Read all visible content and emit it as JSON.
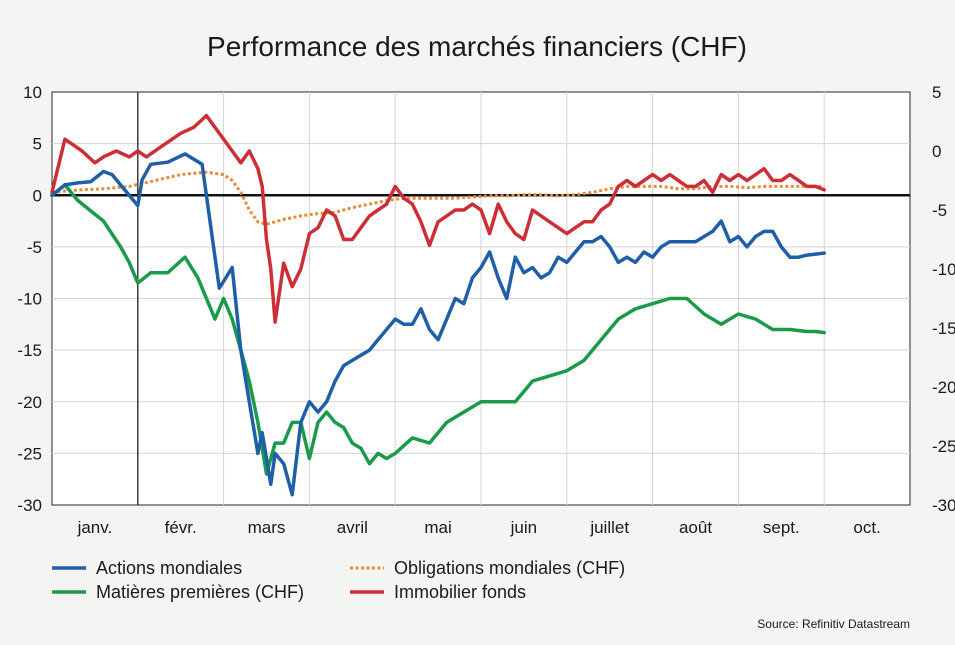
{
  "chart_data": {
    "type": "line",
    "title": "Performance des marchés financiers (CHF)",
    "source": "Source: Refinitiv Datastream",
    "months": [
      "janv.",
      "févr.",
      "mars",
      "avril",
      "mai",
      "juin",
      "juillet",
      "août",
      "sept.",
      "oct."
    ],
    "x_range": [
      0,
      10
    ],
    "left_axis": {
      "min": -30,
      "max": 10,
      "ticks": [
        10,
        5,
        0,
        -5,
        -10,
        -15,
        -20,
        -25,
        -30
      ]
    },
    "right_axis": {
      "min": -30,
      "max": 5,
      "ticks": [
        5,
        0,
        -5,
        -10,
        -15,
        -20,
        -25,
        -30
      ]
    },
    "colors": {
      "actions": "#1f5fa8",
      "matieres": "#1c9a4c",
      "obligations": "#e98a3c",
      "immobilier": "#cc2f36"
    },
    "series": [
      {
        "key": "actions",
        "name": "Actions mondiales",
        "axis": "left",
        "style": "solid",
        "x": [
          0.0,
          0.15,
          0.3,
          0.45,
          0.6,
          0.7,
          0.85,
          1.0,
          1.05,
          1.15,
          1.35,
          1.55,
          1.75,
          1.95,
          2.1,
          2.2,
          2.3,
          2.4,
          2.45,
          2.55,
          2.6,
          2.7,
          2.8,
          2.9,
          3.0,
          3.1,
          3.2,
          3.3,
          3.4,
          3.5,
          3.6,
          3.7,
          3.8,
          3.9,
          4.0,
          4.1,
          4.2,
          4.3,
          4.4,
          4.5,
          4.6,
          4.7,
          4.8,
          4.9,
          5.0,
          5.1,
          5.2,
          5.3,
          5.4,
          5.5,
          5.6,
          5.7,
          5.8,
          5.9,
          6.0,
          6.1,
          6.2,
          6.3,
          6.4,
          6.5,
          6.6,
          6.7,
          6.8,
          6.9,
          7.0,
          7.1,
          7.2,
          7.3,
          7.4,
          7.5,
          7.6,
          7.7,
          7.8,
          7.9,
          8.0,
          8.1,
          8.2,
          8.3,
          8.4,
          8.5,
          8.6,
          8.7,
          8.8,
          8.9,
          9.0
        ],
        "values": [
          0.0,
          1.0,
          1.2,
          1.3,
          2.3,
          2.0,
          0.5,
          -1.0,
          1.5,
          3.0,
          3.2,
          4.0,
          3.0,
          -9.0,
          -7.0,
          -15.0,
          -20.0,
          -25.0,
          -23.0,
          -28.0,
          -25.0,
          -26.0,
          -29.0,
          -22.0,
          -20.0,
          -21.0,
          -20.0,
          -18.0,
          -16.5,
          -16.0,
          -15.5,
          -15.0,
          -14.0,
          -13.0,
          -12.0,
          -12.5,
          -12.5,
          -11.0,
          -13.0,
          -14.0,
          -12.0,
          -10.0,
          -10.5,
          -8.0,
          -7.0,
          -5.5,
          -8.0,
          -10.0,
          -6.0,
          -7.5,
          -7.0,
          -8.0,
          -7.5,
          -6.0,
          -6.5,
          -5.5,
          -4.5,
          -4.5,
          -4.0,
          -5.0,
          -6.5,
          -6.0,
          -6.5,
          -5.5,
          -6.0,
          -5.0,
          -4.5,
          -4.5,
          -4.5,
          -4.5,
          -4.0,
          -3.5,
          -2.5,
          -4.5,
          -4.0,
          -5.0,
          -4.0,
          -3.5,
          -3.5,
          -5.0,
          -6.0,
          -6.0,
          -5.8,
          -5.7,
          -5.6
        ]
      },
      {
        "key": "matieres",
        "name": "Matières premières (CHF)",
        "axis": "left",
        "style": "solid",
        "x": [
          0.0,
          0.15,
          0.3,
          0.45,
          0.6,
          0.8,
          0.9,
          1.0,
          1.15,
          1.35,
          1.55,
          1.7,
          1.9,
          2.0,
          2.1,
          2.2,
          2.3,
          2.4,
          2.5,
          2.6,
          2.7,
          2.8,
          2.9,
          3.0,
          3.1,
          3.2,
          3.3,
          3.4,
          3.5,
          3.6,
          3.7,
          3.8,
          3.9,
          4.0,
          4.2,
          4.4,
          4.6,
          4.8,
          5.0,
          5.2,
          5.4,
          5.6,
          5.8,
          6.0,
          6.2,
          6.4,
          6.6,
          6.8,
          7.0,
          7.2,
          7.4,
          7.6,
          7.8,
          8.0,
          8.2,
          8.4,
          8.6,
          8.8,
          8.9,
          9.0
        ],
        "values": [
          0.0,
          1.0,
          -0.5,
          -1.5,
          -2.5,
          -5.0,
          -6.5,
          -8.5,
          -7.5,
          -7.5,
          -6.0,
          -8.0,
          -12.0,
          -10.0,
          -12.0,
          -15.0,
          -18.0,
          -22.0,
          -27.0,
          -24.0,
          -24.0,
          -22.0,
          -22.0,
          -25.5,
          -22.0,
          -21.0,
          -22.0,
          -22.5,
          -24.0,
          -24.5,
          -26.0,
          -25.0,
          -25.5,
          -25.0,
          -23.5,
          -24.0,
          -22.0,
          -21.0,
          -20.0,
          -20.0,
          -20.0,
          -18.0,
          -17.5,
          -17.0,
          -16.0,
          -14.0,
          -12.0,
          -11.0,
          -10.5,
          -10.0,
          -10.0,
          -11.5,
          -12.5,
          -11.5,
          -12.0,
          -13.0,
          -13.0,
          -13.2,
          -13.2,
          -13.3
        ]
      },
      {
        "key": "obligations",
        "name": "Obligations mondiales (CHF)",
        "axis": "right",
        "style": "dotted",
        "x": [
          0.0,
          0.3,
          0.6,
          0.9,
          1.2,
          1.5,
          1.8,
          2.0,
          2.1,
          2.2,
          2.3,
          2.4,
          2.5,
          2.7,
          2.9,
          3.1,
          3.3,
          3.5,
          3.7,
          3.9,
          4.1,
          4.3,
          4.5,
          4.7,
          4.9,
          5.1,
          5.3,
          5.5,
          5.7,
          5.9,
          6.1,
          6.3,
          6.5,
          6.7,
          6.9,
          7.1,
          7.3,
          7.5,
          7.7,
          7.9,
          8.1,
          8.3,
          8.5,
          8.7,
          8.9,
          9.0
        ],
        "values": [
          -3.5,
          -3.3,
          -3.2,
          -3.0,
          -2.5,
          -2.0,
          -1.8,
          -2.0,
          -2.5,
          -3.5,
          -5.0,
          -6.0,
          -6.2,
          -5.8,
          -5.5,
          -5.3,
          -5.2,
          -4.8,
          -4.5,
          -4.2,
          -4.0,
          -4.0,
          -4.0,
          -4.0,
          -3.9,
          -3.8,
          -3.8,
          -3.7,
          -3.7,
          -3.8,
          -3.7,
          -3.5,
          -3.2,
          -3.0,
          -3.0,
          -3.0,
          -3.2,
          -3.2,
          -3.0,
          -3.0,
          -3.1,
          -3.0,
          -3.0,
          -3.0,
          -3.0,
          -3.0
        ]
      },
      {
        "key": "immobilier",
        "name": "Immobilier fonds",
        "axis": "right",
        "style": "solid",
        "x": [
          0.0,
          0.15,
          0.25,
          0.35,
          0.5,
          0.6,
          0.75,
          0.9,
          1.0,
          1.1,
          1.3,
          1.5,
          1.65,
          1.8,
          1.9,
          2.0,
          2.1,
          2.2,
          2.3,
          2.4,
          2.45,
          2.5,
          2.55,
          2.6,
          2.7,
          2.8,
          2.9,
          3.0,
          3.1,
          3.2,
          3.3,
          3.4,
          3.5,
          3.6,
          3.7,
          3.8,
          3.9,
          4.0,
          4.1,
          4.2,
          4.3,
          4.4,
          4.5,
          4.6,
          4.7,
          4.8,
          4.9,
          5.0,
          5.1,
          5.2,
          5.3,
          5.4,
          5.5,
          5.6,
          5.7,
          5.8,
          5.9,
          6.0,
          6.1,
          6.2,
          6.3,
          6.4,
          6.5,
          6.6,
          6.7,
          6.8,
          6.9,
          7.0,
          7.1,
          7.2,
          7.3,
          7.4,
          7.5,
          7.6,
          7.7,
          7.8,
          7.9,
          8.0,
          8.1,
          8.2,
          8.3,
          8.4,
          8.5,
          8.6,
          8.7,
          8.8,
          8.9,
          9.0
        ],
        "values": [
          -3.5,
          1.0,
          0.5,
          0.0,
          -1.0,
          -0.5,
          0.0,
          -0.5,
          0.0,
          -0.5,
          0.5,
          1.5,
          2.0,
          3.0,
          2.0,
          1.0,
          0.0,
          -1.0,
          0.0,
          -1.5,
          -3.0,
          -7.5,
          -10.0,
          -14.5,
          -9.5,
          -11.5,
          -10.0,
          -7.0,
          -6.5,
          -5.0,
          -5.5,
          -7.5,
          -7.5,
          -6.5,
          -5.5,
          -5.0,
          -4.5,
          -3.0,
          -4.0,
          -4.5,
          -6.0,
          -8.0,
          -6.0,
          -5.5,
          -5.0,
          -5.0,
          -4.5,
          -5.0,
          -7.0,
          -4.5,
          -6.0,
          -7.0,
          -7.5,
          -5.0,
          -5.5,
          -6.0,
          -6.5,
          -7.0,
          -6.5,
          -6.0,
          -6.0,
          -5.0,
          -4.5,
          -3.0,
          -2.5,
          -3.0,
          -2.5,
          -2.0,
          -2.5,
          -2.0,
          -2.5,
          -3.0,
          -3.0,
          -2.5,
          -3.5,
          -2.0,
          -2.5,
          -2.0,
          -2.5,
          -2.0,
          -1.5,
          -2.5,
          -2.5,
          -2.0,
          -2.5,
          -3.0,
          -3.0,
          -3.3
        ]
      }
    ]
  }
}
